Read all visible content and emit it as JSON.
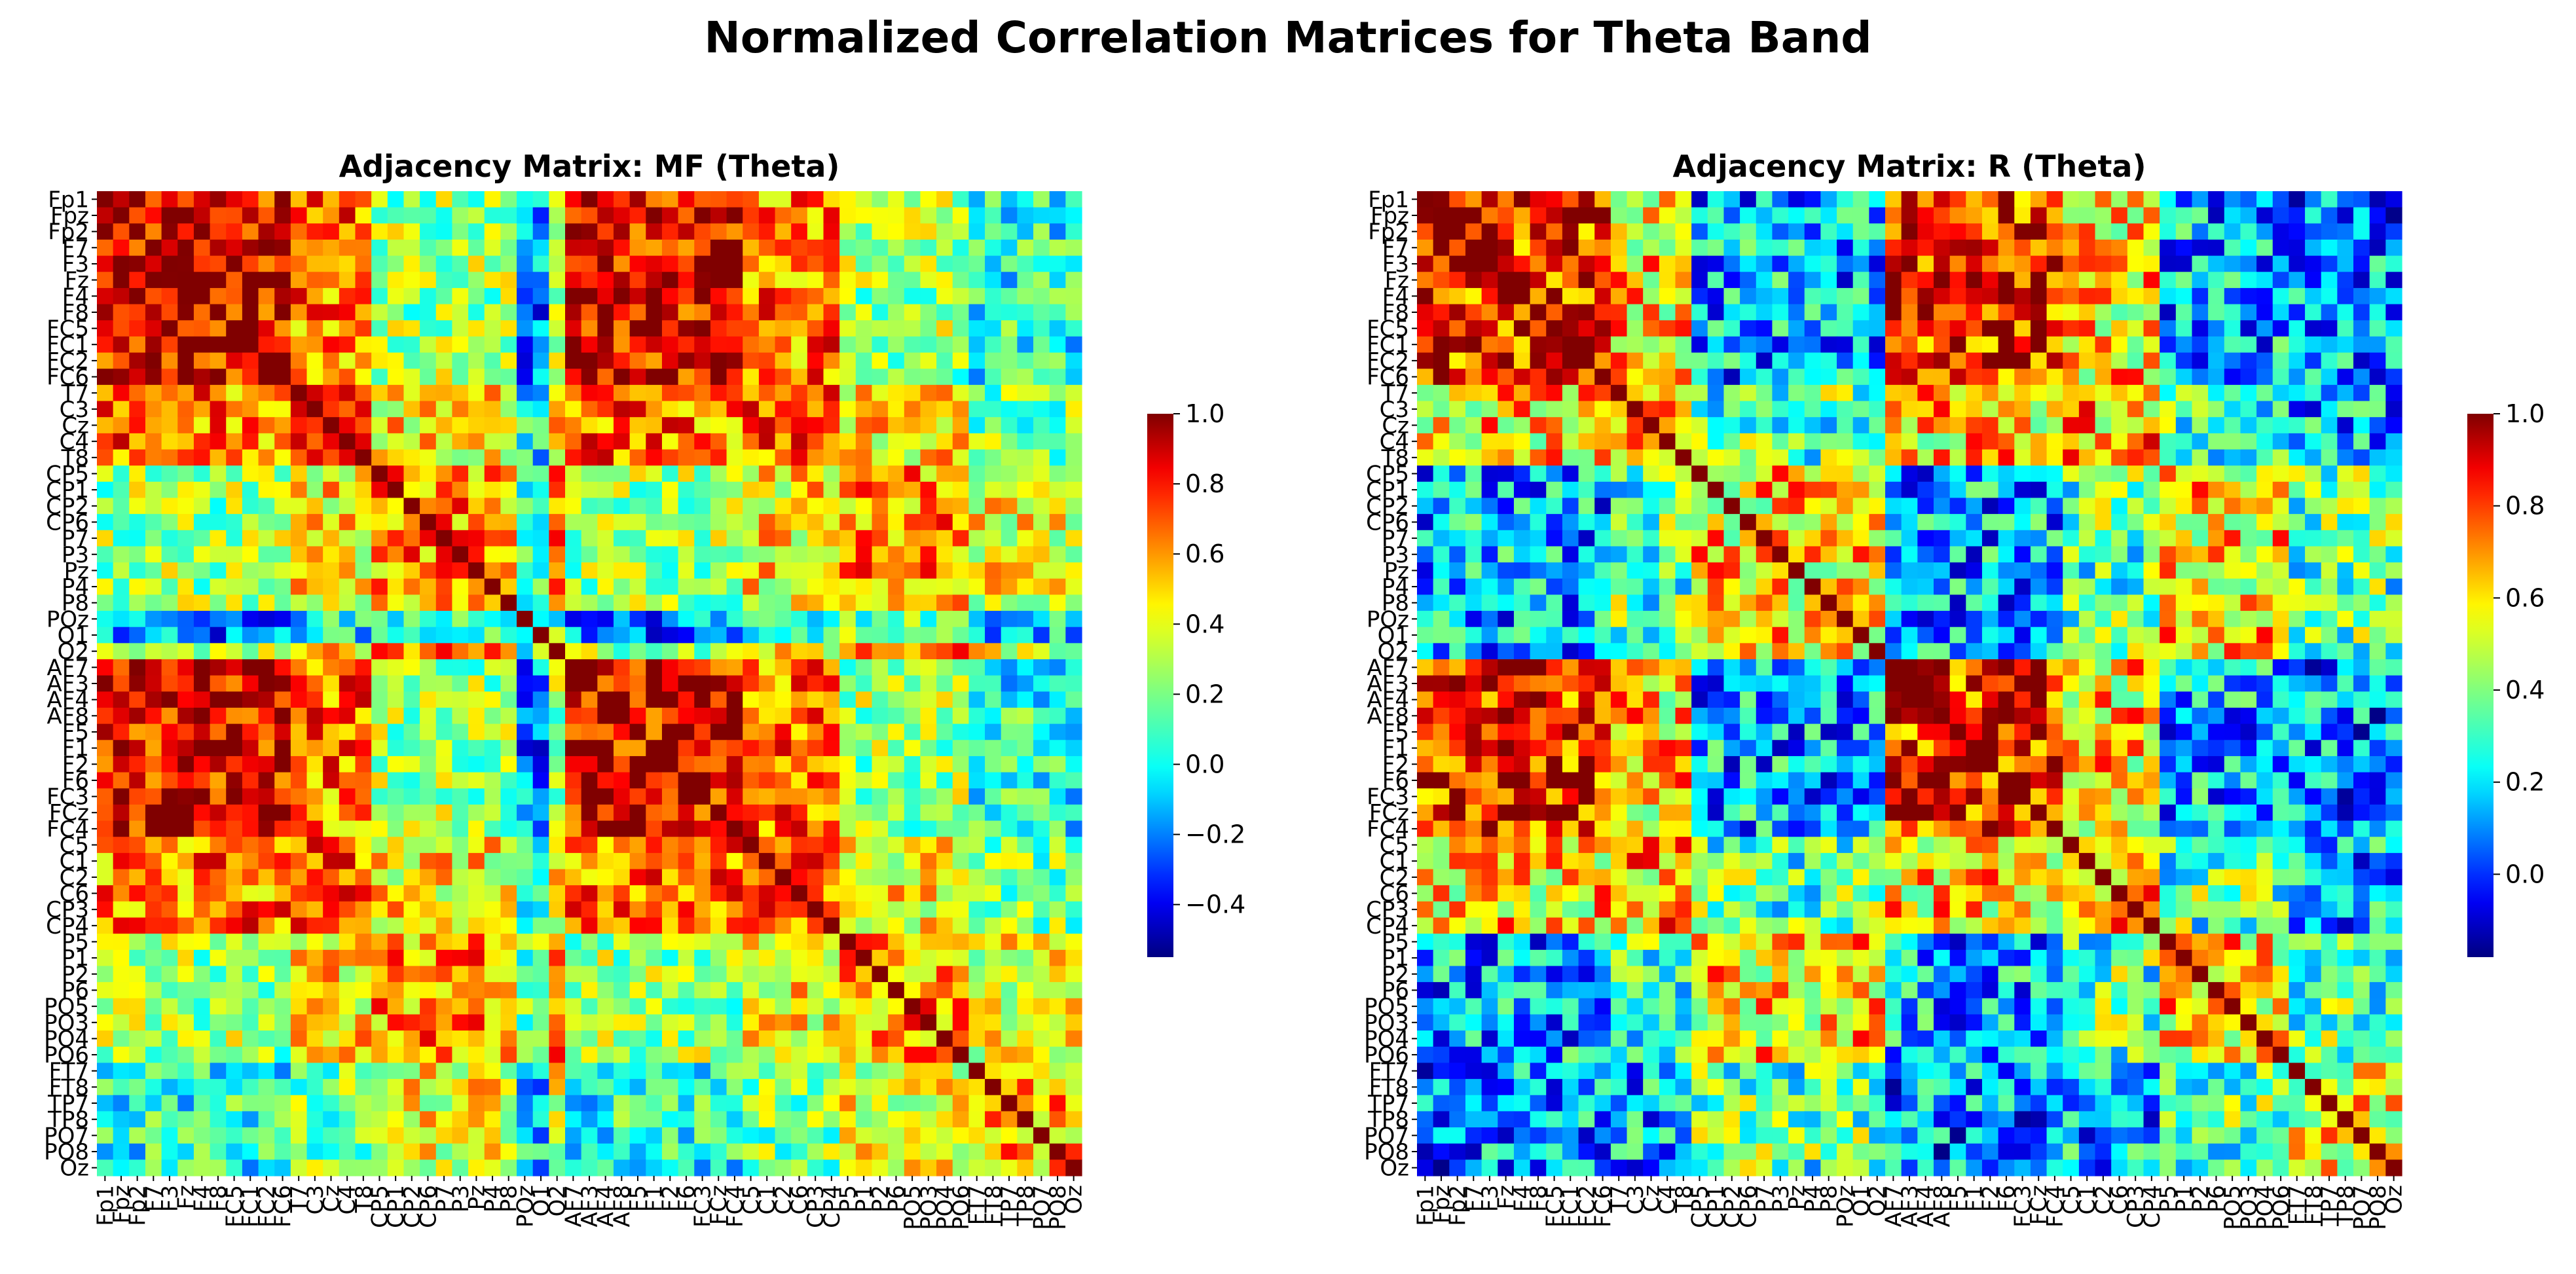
{
  "figure": {
    "title": "Normalized Correlation Matrices for Theta Band"
  },
  "colormap": {
    "name": "jet",
    "stops": [
      "#000080",
      "#0000ff",
      "#00ffff",
      "#ffff00",
      "#ff0000",
      "#800000"
    ]
  },
  "chart_data": [
    {
      "type": "heatmap",
      "title": "Adjacency Matrix: MF (Theta)",
      "labels": [
        "Fp1",
        "Fpz",
        "Fp2",
        "F7",
        "F3",
        "Fz",
        "F4",
        "F8",
        "FC5",
        "FC1",
        "FC2",
        "FC6",
        "T7",
        "C3",
        "Cz",
        "C4",
        "T8",
        "CP5",
        "CP1",
        "CP2",
        "CP6",
        "P7",
        "P3",
        "Pz",
        "P4",
        "P8",
        "POz",
        "O1",
        "O2",
        "AF7",
        "AF3",
        "AF4",
        "AF8",
        "F5",
        "F1",
        "F2",
        "F6",
        "FC3",
        "FCz",
        "FC4",
        "C5",
        "C1",
        "C2",
        "C6",
        "CP3",
        "CP4",
        "P5",
        "P1",
        "P2",
        "P6",
        "PO5",
        "PO3",
        "PO4",
        "PO6",
        "FT7",
        "FT8",
        "TP7",
        "TP8",
        "PO7",
        "PO8",
        "Oz"
      ],
      "colorbar": {
        "vmin": -0.55,
        "vmax": 1.0,
        "ticks": [
          "1.0",
          "0.8",
          "0.6",
          "0.4",
          "0.2",
          "0.0",
          "−0.2",
          "−0.4"
        ]
      }
    },
    {
      "type": "heatmap",
      "title": "Adjacency Matrix: R (Theta)",
      "labels": [
        "Fp1",
        "Fpz",
        "Fp2",
        "F7",
        "F3",
        "Fz",
        "F4",
        "F8",
        "FC5",
        "FC1",
        "FC2",
        "FC6",
        "T7",
        "C3",
        "Cz",
        "C4",
        "T8",
        "CP5",
        "CP1",
        "CP2",
        "CP6",
        "P7",
        "P3",
        "Pz",
        "P4",
        "P8",
        "POz",
        "O1",
        "O2",
        "AF7",
        "AF3",
        "AF4",
        "AF8",
        "F5",
        "F1",
        "F2",
        "F6",
        "FC3",
        "FCz",
        "FC4",
        "C5",
        "C1",
        "C2",
        "C6",
        "CP3",
        "CP4",
        "P5",
        "P1",
        "P2",
        "P6",
        "PO5",
        "PO3",
        "PO4",
        "PO6",
        "FT7",
        "FT8",
        "TP7",
        "TP8",
        "PO7",
        "PO8",
        "Oz"
      ],
      "colorbar": {
        "vmin": -0.18,
        "vmax": 1.0,
        "ticks": [
          "1.0",
          "0.8",
          "0.6",
          "0.4",
          "0.2",
          "0.0"
        ]
      }
    }
  ]
}
